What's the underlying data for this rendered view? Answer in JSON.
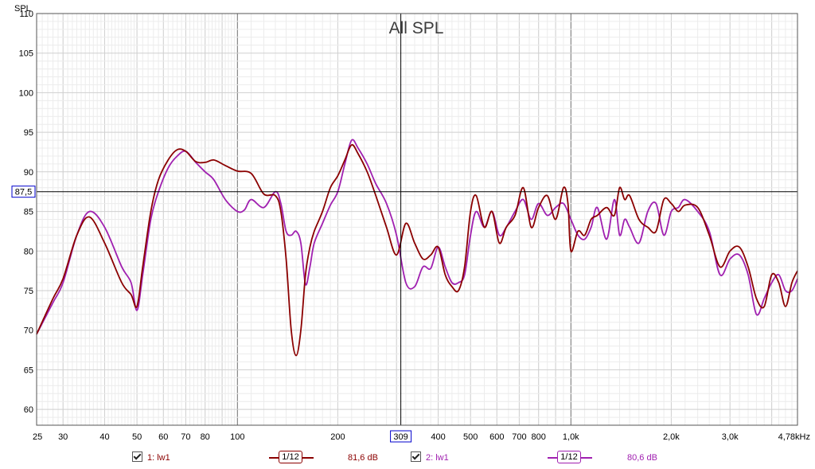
{
  "chart_data": {
    "type": "line",
    "title": "All SPL",
    "ylabel": "SPL",
    "xlabel": "",
    "x_scale": "log",
    "xlim": [
      25,
      4780
    ],
    "ylim": [
      58,
      110
    ],
    "grid": true,
    "x_tick_labels": [
      {
        "v": 25,
        "t": "25"
      },
      {
        "v": 30,
        "t": "30"
      },
      {
        "v": 40,
        "t": "40"
      },
      {
        "v": 50,
        "t": "50"
      },
      {
        "v": 60,
        "t": "60"
      },
      {
        "v": 70,
        "t": "70"
      },
      {
        "v": 80,
        "t": "80"
      },
      {
        "v": 100,
        "t": "100"
      },
      {
        "v": 200,
        "t": "200"
      },
      {
        "v": 400,
        "t": "400"
      },
      {
        "v": 500,
        "t": "500"
      },
      {
        "v": 600,
        "t": "600"
      },
      {
        "v": 700,
        "t": "700"
      },
      {
        "v": 800,
        "t": "800"
      },
      {
        "v": 1000,
        "t": "1,0k"
      },
      {
        "v": 2000,
        "t": "2,0k"
      },
      {
        "v": 3000,
        "t": "3,0k"
      },
      {
        "v": 4780,
        "t": "4,78kHz"
      }
    ],
    "y_ticks": [
      60,
      65,
      70,
      75,
      80,
      85,
      90,
      95,
      100,
      105,
      110
    ],
    "cursor": {
      "x": 309,
      "x_label": "309",
      "y": 87.5,
      "y_label": "87,5"
    },
    "series": [
      {
        "name": "1: lw1",
        "color": "#8b0000",
        "points": [
          [
            25,
            69.5
          ],
          [
            28,
            74
          ],
          [
            30,
            76.5
          ],
          [
            33,
            82
          ],
          [
            36,
            84.3
          ],
          [
            40,
            81
          ],
          [
            45,
            76
          ],
          [
            48,
            74.5
          ],
          [
            50,
            73
          ],
          [
            52,
            78
          ],
          [
            55,
            85
          ],
          [
            58,
            89
          ],
          [
            62,
            91.5
          ],
          [
            66,
            92.8
          ],
          [
            70,
            92.6
          ],
          [
            75,
            91.3
          ],
          [
            80,
            91.2
          ],
          [
            85,
            91.5
          ],
          [
            92,
            90.8
          ],
          [
            100,
            90.1
          ],
          [
            110,
            89.8
          ],
          [
            120,
            87.2
          ],
          [
            130,
            87
          ],
          [
            135,
            85
          ],
          [
            140,
            79
          ],
          [
            145,
            70
          ],
          [
            150,
            66.8
          ],
          [
            155,
            70
          ],
          [
            160,
            77
          ],
          [
            165,
            80.5
          ],
          [
            170,
            82.5
          ],
          [
            180,
            85
          ],
          [
            190,
            88
          ],
          [
            200,
            89.5
          ],
          [
            210,
            91.5
          ],
          [
            220,
            93.4
          ],
          [
            230,
            92.3
          ],
          [
            245,
            90
          ],
          [
            260,
            87
          ],
          [
            280,
            83
          ],
          [
            300,
            79.5
          ],
          [
            320,
            83.5
          ],
          [
            340,
            81
          ],
          [
            360,
            79
          ],
          [
            380,
            79.5
          ],
          [
            400,
            80.5
          ],
          [
            420,
            77
          ],
          [
            440,
            75.5
          ],
          [
            460,
            75
          ],
          [
            480,
            78
          ],
          [
            500,
            85
          ],
          [
            520,
            87
          ],
          [
            550,
            83
          ],
          [
            580,
            85
          ],
          [
            610,
            81
          ],
          [
            640,
            83
          ],
          [
            680,
            84.5
          ],
          [
            720,
            88
          ],
          [
            760,
            83
          ],
          [
            800,
            85.5
          ],
          [
            850,
            87
          ],
          [
            900,
            84
          ],
          [
            950,
            88
          ],
          [
            980,
            86
          ],
          [
            1000,
            80
          ],
          [
            1050,
            82.5
          ],
          [
            1100,
            82
          ],
          [
            1150,
            84
          ],
          [
            1200,
            84.5
          ],
          [
            1280,
            85.5
          ],
          [
            1350,
            84.5
          ],
          [
            1400,
            88
          ],
          [
            1450,
            86.5
          ],
          [
            1500,
            87
          ],
          [
            1600,
            84
          ],
          [
            1700,
            83
          ],
          [
            1800,
            82.5
          ],
          [
            1900,
            86.5
          ],
          [
            2000,
            86
          ],
          [
            2100,
            85
          ],
          [
            2200,
            85.8
          ],
          [
            2400,
            85.5
          ],
          [
            2600,
            82
          ],
          [
            2800,
            78
          ],
          [
            3000,
            80
          ],
          [
            3200,
            80.5
          ],
          [
            3400,
            78
          ],
          [
            3600,
            74
          ],
          [
            3800,
            73
          ],
          [
            4000,
            77
          ],
          [
            4200,
            76
          ],
          [
            4400,
            73
          ],
          [
            4600,
            76
          ],
          [
            4780,
            77.5
          ]
        ]
      },
      {
        "name": "2: lw1",
        "color": "#a020b0",
        "points": [
          [
            25,
            69.5
          ],
          [
            28,
            73.5
          ],
          [
            30,
            76
          ],
          [
            33,
            82
          ],
          [
            36,
            85
          ],
          [
            40,
            83
          ],
          [
            45,
            78
          ],
          [
            48,
            76
          ],
          [
            50,
            72.5
          ],
          [
            52,
            77
          ],
          [
            55,
            84
          ],
          [
            58,
            87.5
          ],
          [
            62,
            90.5
          ],
          [
            66,
            92
          ],
          [
            70,
            92.6
          ],
          [
            75,
            91.2
          ],
          [
            80,
            90
          ],
          [
            85,
            89
          ],
          [
            92,
            86.5
          ],
          [
            100,
            85
          ],
          [
            105,
            85.2
          ],
          [
            110,
            86.5
          ],
          [
            120,
            85.5
          ],
          [
            130,
            87.5
          ],
          [
            135,
            86
          ],
          [
            140,
            82.5
          ],
          [
            145,
            82
          ],
          [
            150,
            82.5
          ],
          [
            155,
            81
          ],
          [
            160,
            75.8
          ],
          [
            165,
            78
          ],
          [
            170,
            81
          ],
          [
            180,
            83.5
          ],
          [
            190,
            85.8
          ],
          [
            200,
            87.5
          ],
          [
            210,
            91
          ],
          [
            220,
            94
          ],
          [
            230,
            93
          ],
          [
            245,
            91
          ],
          [
            260,
            88.5
          ],
          [
            280,
            86
          ],
          [
            300,
            82
          ],
          [
            320,
            76
          ],
          [
            340,
            75.5
          ],
          [
            360,
            78
          ],
          [
            380,
            77.8
          ],
          [
            400,
            80.5
          ],
          [
            420,
            78
          ],
          [
            440,
            76
          ],
          [
            460,
            76
          ],
          [
            480,
            77
          ],
          [
            500,
            82
          ],
          [
            520,
            85
          ],
          [
            550,
            83
          ],
          [
            580,
            85
          ],
          [
            610,
            82
          ],
          [
            640,
            83
          ],
          [
            680,
            85
          ],
          [
            720,
            86.5
          ],
          [
            760,
            84
          ],
          [
            800,
            86
          ],
          [
            850,
            84.5
          ],
          [
            900,
            85.5
          ],
          [
            950,
            86
          ],
          [
            1000,
            84
          ],
          [
            1050,
            82
          ],
          [
            1100,
            81.5
          ],
          [
            1150,
            83
          ],
          [
            1200,
            85.5
          ],
          [
            1280,
            81.5
          ],
          [
            1350,
            86.5
          ],
          [
            1400,
            82
          ],
          [
            1450,
            84
          ],
          [
            1500,
            83
          ],
          [
            1600,
            81
          ],
          [
            1700,
            85
          ],
          [
            1800,
            86
          ],
          [
            1900,
            82
          ],
          [
            2000,
            85
          ],
          [
            2100,
            85.5
          ],
          [
            2200,
            86.5
          ],
          [
            2400,
            85
          ],
          [
            2600,
            82.5
          ],
          [
            2800,
            77
          ],
          [
            3000,
            79
          ],
          [
            3200,
            79.5
          ],
          [
            3400,
            77
          ],
          [
            3600,
            72
          ],
          [
            3800,
            74
          ],
          [
            4000,
            76
          ],
          [
            4200,
            77
          ],
          [
            4400,
            75
          ],
          [
            4600,
            75
          ],
          [
            4780,
            76.5
          ]
        ]
      }
    ]
  },
  "legend": {
    "items": [
      {
        "label": "1: lw1",
        "smoothing": "1/12",
        "value": "81,6 dB",
        "color": "#8b0000"
      },
      {
        "label": "2: lw1",
        "smoothing": "1/12",
        "value": "80,6 dB",
        "color": "#a020b0"
      }
    ]
  }
}
